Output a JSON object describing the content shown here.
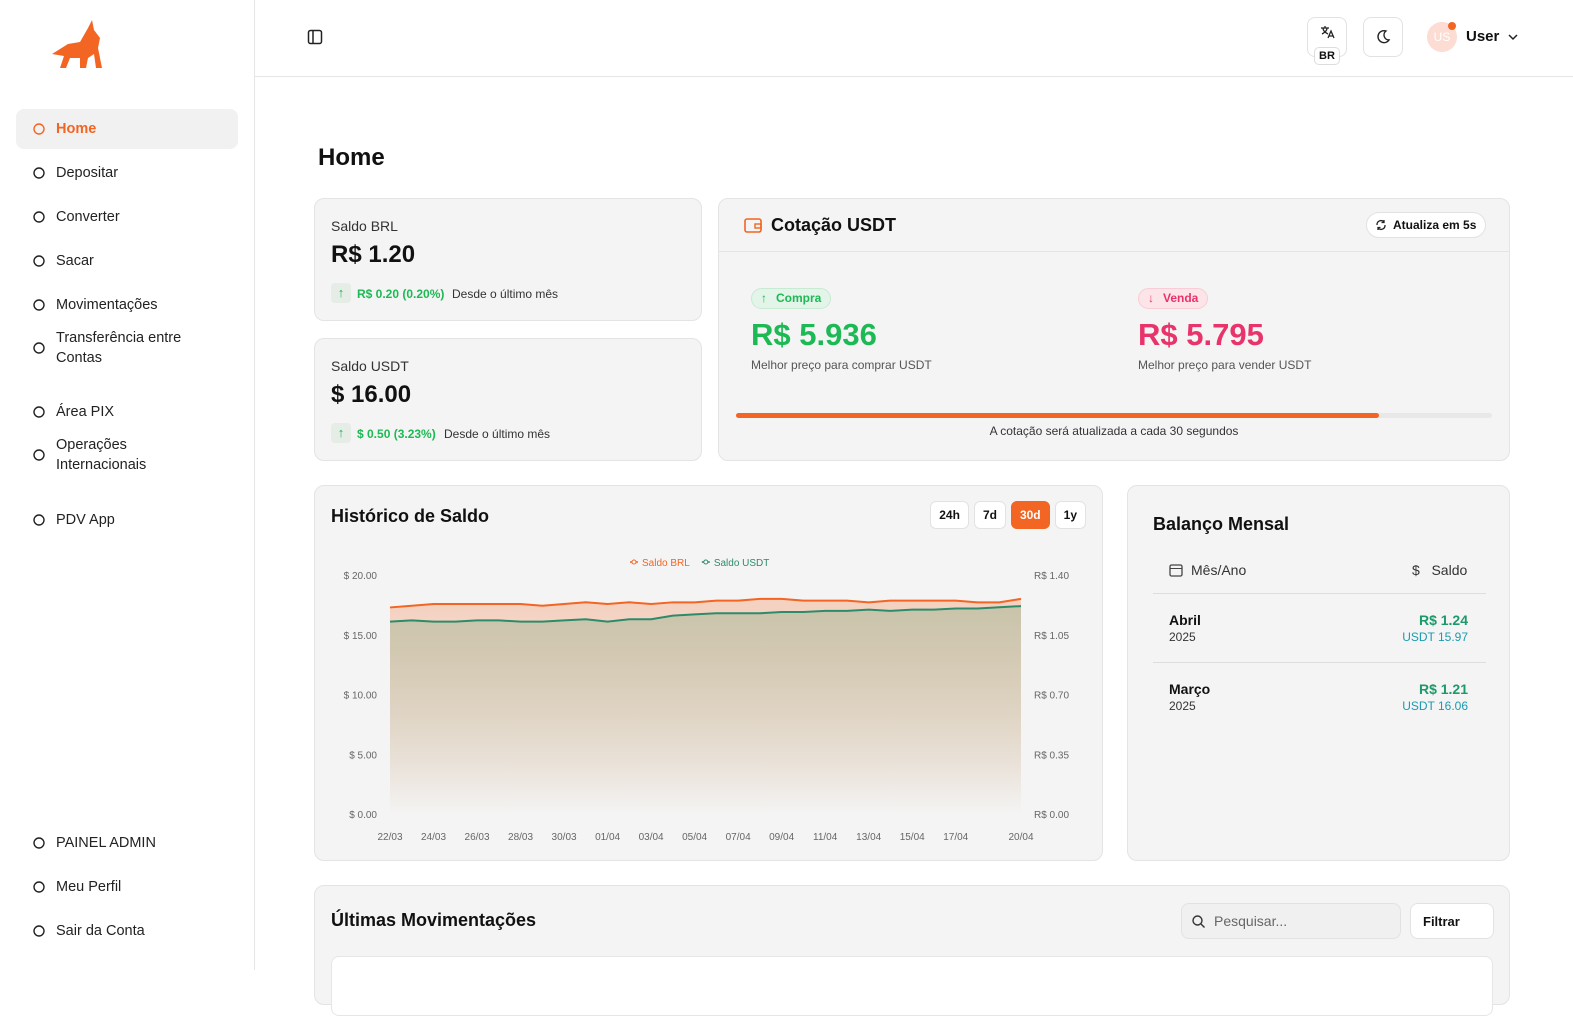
{
  "sidebar": {
    "nav": [
      "Home",
      "Depositar",
      "Converter",
      "Sacar",
      "Movimentações",
      "Transferência entre Contas",
      "Área PIX",
      "Operações Internacionais",
      "PDV App"
    ],
    "active": 0,
    "bottom": [
      "PAINEL ADMIN",
      "Meu Perfil",
      "Sair da Conta"
    ]
  },
  "topbar": {
    "lang": "BR",
    "avatar": "US",
    "user": "User"
  },
  "page_title": "Home",
  "balances": [
    {
      "label": "Saldo BRL",
      "value": "R$ 1.20",
      "change": "R$ 0.20 (0.20%)",
      "note": "Desde o último mês"
    },
    {
      "label": "Saldo USDT",
      "value": "$ 16.00",
      "change": "$ 0.50 (3.23%)",
      "note": "Desde o último mês"
    }
  ],
  "quote": {
    "title": "Cotação USDT",
    "refresh": "Atualiza em 5s",
    "buy": {
      "badge": "Compra",
      "value": "R$ 5.936",
      "note": "Melhor preço para comprar USDT"
    },
    "sell": {
      "badge": "Venda",
      "value": "R$ 5.795",
      "note": "Melhor preço para vender USDT"
    },
    "progress": 85,
    "footer": "A cotação será atualizada a cada 30 segundos"
  },
  "chart_data": {
    "type": "area",
    "title": "Histórico de Saldo",
    "ranges": [
      "24h",
      "7d",
      "30d",
      "1y"
    ],
    "active_range": 2,
    "categories": [
      "22/03",
      null,
      "24/03",
      null,
      "26/03",
      null,
      "28/03",
      null,
      "30/03",
      null,
      "01/04",
      null,
      "03/04",
      null,
      "05/04",
      null,
      "07/04",
      null,
      "09/04",
      null,
      "11/04",
      null,
      "13/04",
      null,
      "15/04",
      null,
      "17/04",
      null,
      null,
      "20/04"
    ],
    "series": [
      {
        "name": "Saldo BRL",
        "color": "#f26522",
        "axis": "y2",
        "values": [
          1.21,
          1.22,
          1.23,
          1.23,
          1.23,
          1.23,
          1.23,
          1.22,
          1.23,
          1.24,
          1.23,
          1.24,
          1.23,
          1.24,
          1.24,
          1.25,
          1.25,
          1.26,
          1.26,
          1.25,
          1.25,
          1.25,
          1.24,
          1.25,
          1.25,
          1.25,
          1.25,
          1.24,
          1.24,
          1.26
        ]
      },
      {
        "name": "Saldo USDT",
        "color": "#2e8b6a",
        "values": [
          16.1,
          16.2,
          16.1,
          16.1,
          16.2,
          16.2,
          16.1,
          16.1,
          16.2,
          16.3,
          16.1,
          16.3,
          16.3,
          16.6,
          16.7,
          16.8,
          16.8,
          16.8,
          16.9,
          16.9,
          17.0,
          17.0,
          17.1,
          17.0,
          17.1,
          17.1,
          17.2,
          17.2,
          17.3,
          17.4
        ]
      }
    ],
    "ylim": [
      0,
      20
    ],
    "yticks": [
      {
        "value": 20,
        "label": "$ 20.00"
      },
      {
        "value": 15,
        "label": "$ 15.00"
      },
      {
        "value": 10,
        "label": "$ 10.00"
      },
      {
        "value": 5,
        "label": "$ 5.00"
      },
      {
        "value": 0,
        "label": "$ 0.00"
      }
    ],
    "y2lim": [
      0,
      1.4
    ],
    "y2ticks": [
      {
        "value": 1.4,
        "label": "R$ 1.40"
      },
      {
        "value": 1.05,
        "label": "R$ 1.05"
      },
      {
        "value": 0.7,
        "label": "R$ 0.70"
      },
      {
        "value": 0.35,
        "label": "R$ 0.35"
      },
      {
        "value": 0,
        "label": "R$ 0.00"
      }
    ],
    "grid": false,
    "legend": "top"
  },
  "monthly": {
    "title": "Balanço Mensal",
    "headers": [
      "Mês/Ano",
      "Saldo"
    ],
    "rows": [
      {
        "month": "Abril",
        "year": "2025",
        "brl": "R$ 1.24",
        "usdt": "USDT 15.97"
      },
      {
        "month": "Março",
        "year": "2025",
        "brl": "R$ 1.21",
        "usdt": "USDT 16.06"
      }
    ]
  },
  "transactions": {
    "title": "Últimas Movimentações",
    "search": "Pesquisar...",
    "filter": "Filtrar"
  }
}
